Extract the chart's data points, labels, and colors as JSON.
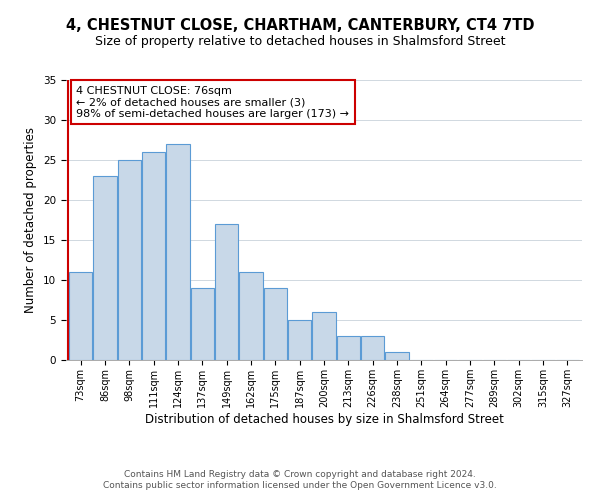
{
  "title": "4, CHESTNUT CLOSE, CHARTHAM, CANTERBURY, CT4 7TD",
  "subtitle": "Size of property relative to detached houses in Shalmsford Street",
  "xlabel": "Distribution of detached houses by size in Shalmsford Street",
  "ylabel": "Number of detached properties",
  "bar_labels": [
    "73sqm",
    "86sqm",
    "98sqm",
    "111sqm",
    "124sqm",
    "137sqm",
    "149sqm",
    "162sqm",
    "175sqm",
    "187sqm",
    "200sqm",
    "213sqm",
    "226sqm",
    "238sqm",
    "251sqm",
    "264sqm",
    "277sqm",
    "289sqm",
    "302sqm",
    "315sqm",
    "327sqm"
  ],
  "bar_values": [
    11,
    23,
    25,
    26,
    27,
    9,
    17,
    11,
    9,
    5,
    6,
    3,
    3,
    1,
    0,
    0,
    0,
    0,
    0,
    0,
    0
  ],
  "bar_color": "#c8d8e8",
  "bar_edge_color": "#5b9bd5",
  "highlight_bar_edge_color": "#cc0000",
  "ylim": [
    0,
    35
  ],
  "yticks": [
    0,
    5,
    10,
    15,
    20,
    25,
    30,
    35
  ],
  "annotation_title": "4 CHESTNUT CLOSE: 76sqm",
  "annotation_line1": "← 2% of detached houses are smaller (3)",
  "annotation_line2": "98% of semi-detached houses are larger (173) →",
  "annotation_box_edge": "#cc0000",
  "footer_line1": "Contains HM Land Registry data © Crown copyright and database right 2024.",
  "footer_line2": "Contains public sector information licensed under the Open Government Licence v3.0.",
  "background_color": "#ffffff",
  "grid_color": "#d0d8e0",
  "title_fontsize": 10.5,
  "subtitle_fontsize": 9,
  "axis_label_fontsize": 8.5,
  "tick_fontsize": 7.5,
  "annotation_fontsize": 8,
  "footer_fontsize": 6.5
}
